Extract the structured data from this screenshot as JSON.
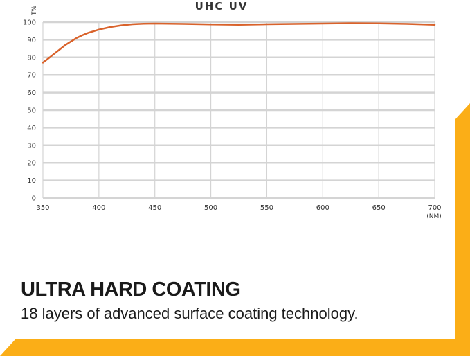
{
  "chart_data": {
    "type": "line",
    "title": "UHC UV",
    "ylabel": "T%",
    "xlabel": "(NM)",
    "xlim": [
      350,
      700
    ],
    "ylim": [
      0,
      100
    ],
    "xticks": [
      350,
      400,
      450,
      500,
      550,
      600,
      650,
      700
    ],
    "yticks": [
      0,
      10,
      20,
      30,
      40,
      50,
      60,
      70,
      80,
      90,
      100
    ],
    "grid": true,
    "series": [
      {
        "color": "#d9622b",
        "x": [
          350,
          355,
          360,
          365,
          370,
          375,
          380,
          385,
          390,
          395,
          400,
          410,
          420,
          430,
          440,
          450,
          475,
          500,
          525,
          550,
          575,
          600,
          625,
          650,
          675,
          700
        ],
        "y": [
          77,
          79.5,
          82,
          84.5,
          87,
          89,
          91,
          92.5,
          93.8,
          94.8,
          95.8,
          97.2,
          98.2,
          98.8,
          99.1,
          99.2,
          99.0,
          98.7,
          98.5,
          98.8,
          99.0,
          99.2,
          99.4,
          99.3,
          99.0,
          98.5
        ]
      }
    ]
  },
  "text": {
    "headline": "ULTRA HARD COATING",
    "subline": "18 layers of advanced surface coating technology."
  },
  "colors": {
    "accent": "#fbae17",
    "grid": "#d4d4d4",
    "line": "#d9622b"
  }
}
